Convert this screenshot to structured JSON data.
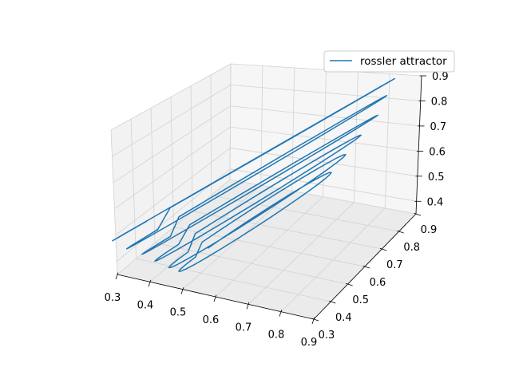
{
  "chart_data": {
    "type": "line",
    "projection": "3d",
    "title": "",
    "xlabel": "",
    "ylabel": "",
    "zlabel": "",
    "xlim": [
      0.3,
      0.9
    ],
    "ylim": [
      0.3,
      0.9
    ],
    "zlim": [
      0.35,
      0.9
    ],
    "xticks": [
      "0.3",
      "0.4",
      "0.5",
      "0.6",
      "0.7",
      "0.8",
      "0.9"
    ],
    "yticks": [
      "0.3",
      "0.4",
      "0.5",
      "0.6",
      "0.7",
      "0.8",
      "0.9"
    ],
    "zticks": [
      "0.4",
      "0.5",
      "0.6",
      "0.7",
      "0.8",
      "0.9"
    ],
    "grid": true,
    "legend_position": "top-right",
    "series": [
      {
        "name": "rossler attractor",
        "color": "#1f77b4",
        "loops": [
          {
            "x0": 0.66,
            "x1": 0.19,
            "y0": 0.42,
            "y1": 0.25,
            "z0": 0.58,
            "z1": 0.22
          },
          {
            "x0": 0.65,
            "x1": 0.22,
            "y0": 0.45,
            "y1": 0.29,
            "z0": 0.6,
            "z1": 0.25
          },
          {
            "x0": 0.63,
            "x1": 0.26,
            "y0": 0.49,
            "y1": 0.33,
            "z0": 0.62,
            "z1": 0.28
          },
          {
            "x0": 0.62,
            "x1": 0.3,
            "y0": 0.52,
            "y1": 0.37,
            "z0": 0.65,
            "z1": 0.31
          },
          {
            "x0": 0.6,
            "x1": 0.33,
            "y0": 0.54,
            "y1": 0.41,
            "z0": 0.68,
            "z1": 0.34
          },
          {
            "x0": 0.58,
            "x1": 0.36,
            "y0": 0.56,
            "y1": 0.44,
            "z0": 0.71,
            "z1": 0.36
          }
        ]
      }
    ]
  }
}
